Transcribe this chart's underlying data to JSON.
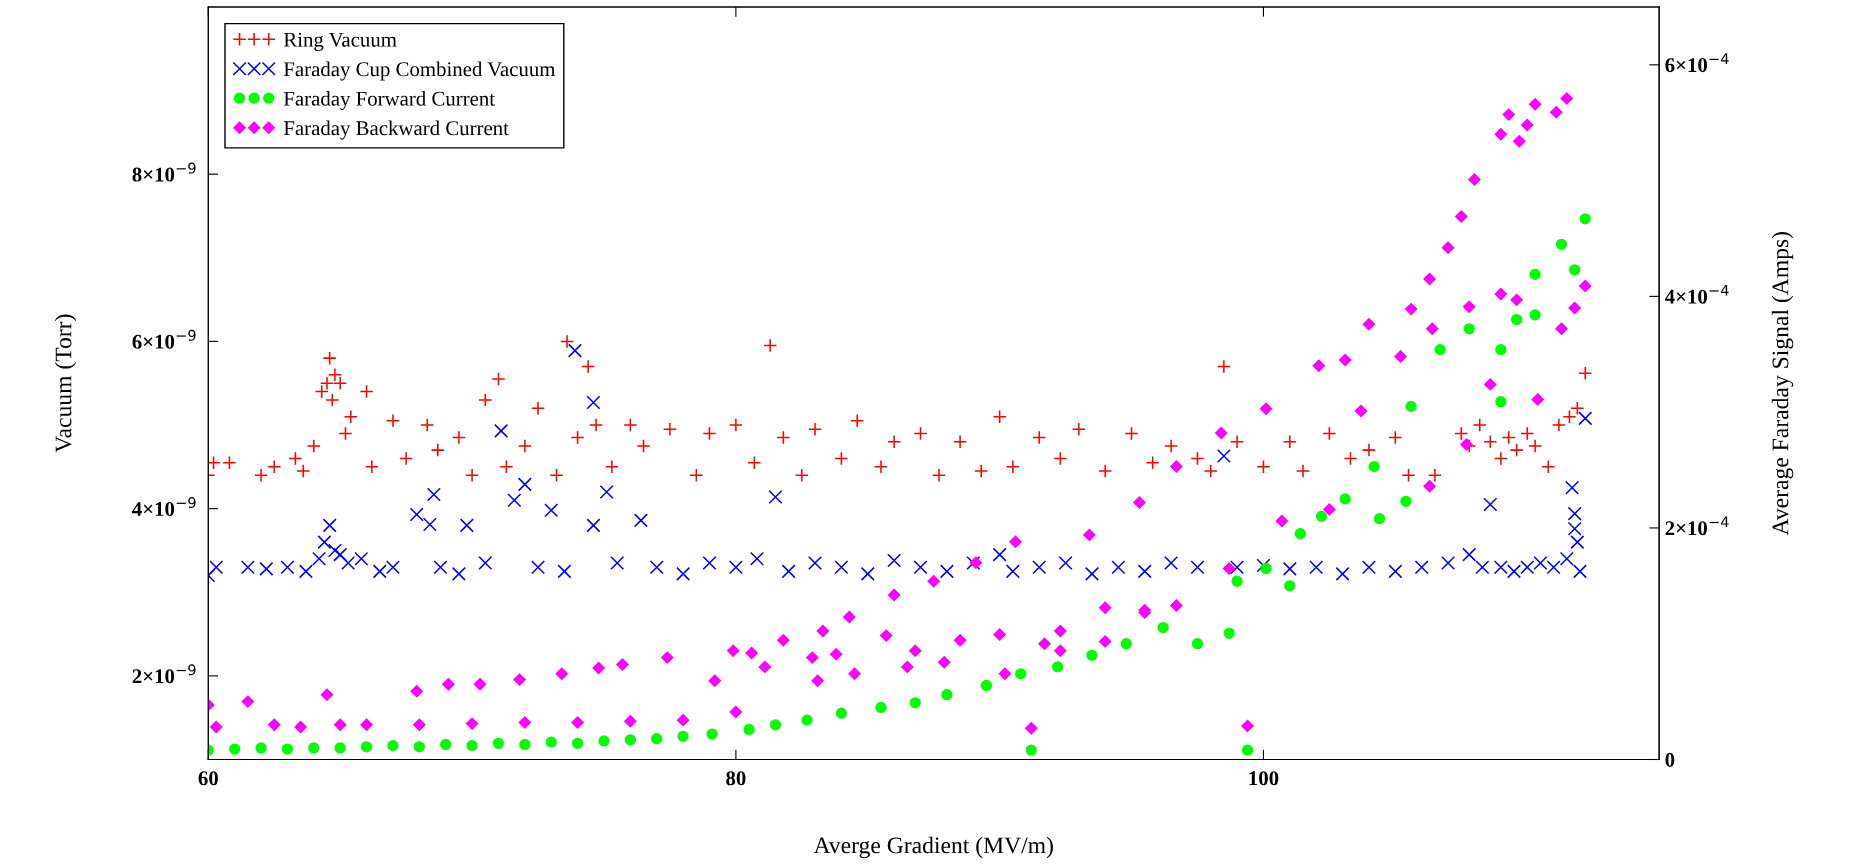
{
  "chart_data": {
    "type": "scatter",
    "xlabel": "Averge Gradient (MV/m)",
    "ylabel": "Vacuum (Torr)",
    "y2label": "Average Faraday Signal (Amps)",
    "xlim": [
      60,
      115
    ],
    "xticks": [
      60,
      80,
      100
    ],
    "ylim": [
      1e-09,
      1e-08
    ],
    "yticks": [
      {
        "value": 2e-09,
        "label": "2×10$^{−9}$"
      },
      {
        "value": 4e-09,
        "label": "4×10$^{−9}$"
      },
      {
        "value": 6e-09,
        "label": "6×10$^{−9}$"
      },
      {
        "value": 8e-09,
        "label": "8×10$^{−9}$"
      }
    ],
    "y2lim": [
      0,
      0.00065
    ],
    "y2ticks": [
      0,
      {
        "value": 0.0002,
        "label": "2×10$^{−4}$"
      },
      {
        "value": 0.0004,
        "label": "4×10$^{−4}$"
      },
      {
        "value": 0.0006,
        "label": "6×10$^{−4}$"
      }
    ],
    "legend": "top left",
    "grid": false,
    "series": [
      {
        "name": "Ring Vacuum",
        "color": "#ff0000",
        "marker": "plus",
        "x": [
          60.0,
          60.2,
          60.8,
          62,
          62.5,
          63.3,
          63.6,
          64.0,
          64.3,
          64.5,
          64.6,
          64.7,
          64.8,
          65,
          65.2,
          65.4,
          66.0,
          66.2,
          67,
          67.5,
          68.3,
          68.7,
          69.5,
          70.0,
          70.5,
          71,
          71.3,
          72,
          72.5,
          73.2,
          73.6,
          74,
          74.4,
          74.7,
          75.3,
          76,
          76.5,
          77.5,
          78.5,
          79,
          80,
          80.7,
          81.3,
          81.8,
          82.5,
          83,
          84,
          84.6,
          85.5,
          86,
          87,
          87.7,
          88.5,
          89.3,
          90,
          90.5,
          91.5,
          92.3,
          93,
          94,
          95,
          95.8,
          96.5,
          97.5,
          98,
          98.5,
          99,
          100,
          101,
          101.5,
          102.5,
          103.3,
          104,
          105,
          105.5,
          106.5,
          107.5,
          107.8,
          108.2,
          108.6,
          109,
          109.3,
          109.6,
          110,
          110.3,
          110.8,
          111.2,
          111.6,
          111.9,
          112.2
        ],
        "values": [
          4.4e-09,
          4.55e-09,
          4.55e-09,
          4.4e-09,
          4.5e-09,
          4.6e-09,
          4.45e-09,
          4.75e-09,
          5.4e-09,
          5.5e-09,
          5.8e-09,
          5.3e-09,
          5.6e-09,
          5.5e-09,
          4.9e-09,
          5.1e-09,
          5.4e-09,
          4.5e-09,
          5.05e-09,
          4.6e-09,
          5e-09,
          4.7e-09,
          4.85e-09,
          4.4e-09,
          5.3e-09,
          5.55e-09,
          4.5e-09,
          4.75e-09,
          5.2e-09,
          4.4e-09,
          6e-09,
          4.85e-09,
          5.7e-09,
          5e-09,
          4.5e-09,
          5e-09,
          4.75e-09,
          4.95e-09,
          4.4e-09,
          4.9e-09,
          5e-09,
          4.55e-09,
          5.95e-09,
          4.85e-09,
          4.4e-09,
          4.95e-09,
          4.6e-09,
          5.05e-09,
          4.5e-09,
          4.8e-09,
          4.9e-09,
          4.4e-09,
          4.8e-09,
          4.45e-09,
          5.1e-09,
          4.5e-09,
          4.85e-09,
          4.6e-09,
          4.95e-09,
          4.45e-09,
          4.9e-09,
          4.55e-09,
          4.75e-09,
          4.6e-09,
          4.45e-09,
          5.7e-09,
          4.8e-09,
          4.5e-09,
          4.8e-09,
          4.45e-09,
          4.9e-09,
          4.6e-09,
          4.7e-09,
          4.85e-09,
          4.4e-09,
          4.4e-09,
          4.9e-09,
          4.75e-09,
          5e-09,
          4.8e-09,
          4.6e-09,
          4.85e-09,
          4.7e-09,
          4.9e-09,
          4.75e-09,
          4.5e-09,
          5e-09,
          5.1e-09,
          5.2e-09,
          5.62e-09
        ]
      },
      {
        "name": "Faraday Cup Combined Vacuum",
        "color": "#0000ff",
        "marker": "cross",
        "x": [
          60,
          60.3,
          61.5,
          62.2,
          63,
          63.7,
          64.2,
          64.4,
          64.6,
          64.8,
          65.0,
          65.3,
          65.8,
          66.5,
          67,
          67.9,
          68.4,
          68.55,
          68.8,
          69.5,
          69.8,
          70.5,
          71.1,
          71.6,
          72.0,
          72.5,
          73.0,
          73.5,
          73.9,
          74.6,
          74.6,
          75.1,
          75.5,
          76.4,
          77,
          78,
          79,
          80,
          80.8,
          81.5,
          82,
          83,
          84,
          85,
          86,
          87,
          88,
          89,
          90,
          90.5,
          91.5,
          92.5,
          93.5,
          94.5,
          95.5,
          96.5,
          97.5,
          98.5,
          99,
          100,
          101,
          102,
          103,
          104,
          105,
          106,
          107,
          107.8,
          108.3,
          108.6,
          109,
          109.5,
          110,
          110.5,
          111,
          111.5,
          111.7,
          111.8,
          111.8,
          111.9,
          112.0,
          112.2
        ],
        "values": [
          3.2e-09,
          3.3e-09,
          3.3e-09,
          3.28e-09,
          3.3e-09,
          3.25e-09,
          3.4e-09,
          3.6e-09,
          3.8e-09,
          3.5e-09,
          3.45e-09,
          3.35e-09,
          3.4e-09,
          3.25e-09,
          3.3e-09,
          3.93e-09,
          3.81e-09,
          4.17e-09,
          3.3e-09,
          3.22e-09,
          3.8e-09,
          3.35e-09,
          4.93e-09,
          4.1e-09,
          4.29e-09,
          3.3e-09,
          3.98e-09,
          3.25e-09,
          5.89e-09,
          5.27e-09,
          3.8e-09,
          4.2e-09,
          3.35e-09,
          3.86e-09,
          3.3e-09,
          3.22e-09,
          3.35e-09,
          3.3e-09,
          3.4e-09,
          4.14e-09,
          3.25e-09,
          3.35e-09,
          3.3e-09,
          3.22e-09,
          3.38e-09,
          3.3e-09,
          3.25e-09,
          3.35e-09,
          3.45e-09,
          3.25e-09,
          3.3e-09,
          3.35e-09,
          3.22e-09,
          3.3e-09,
          3.25e-09,
          3.35e-09,
          3.3e-09,
          4.63e-09,
          3.3e-09,
          3.32e-09,
          3.28e-09,
          3.3e-09,
          3.22e-09,
          3.3e-09,
          3.25e-09,
          3.3e-09,
          3.35e-09,
          3.45e-09,
          3.3e-09,
          4.05e-09,
          3.3e-09,
          3.25e-09,
          3.3e-09,
          3.35e-09,
          3.3e-09,
          3.4e-09,
          4.25e-09,
          3.94e-09,
          3.76e-09,
          3.6e-09,
          3.25e-09,
          5.08e-09
        ]
      },
      {
        "name": "Faraday Forward Current",
        "color": "#00ff00",
        "marker": "circle",
        "axis": "y2",
        "x": [
          60,
          61,
          62,
          63,
          64,
          65,
          66,
          67,
          68,
          69,
          70,
          71,
          72,
          73,
          74,
          75,
          76,
          77,
          78,
          79.1,
          80.5,
          81.5,
          82.7,
          84,
          85.5,
          86.8,
          88,
          89.5,
          90.8,
          91.2,
          92.2,
          93.5,
          94.8,
          96.2,
          97.5,
          98.7,
          99.0,
          99.4,
          100.1,
          101.0,
          101.4,
          102.2,
          103.1,
          104.2,
          104.4,
          105.4,
          105.6,
          106.7,
          107.8,
          109.0,
          109.0,
          109.6,
          110.3,
          110.3,
          111.3,
          111.8,
          112.2
        ],
        "values": [
          8e-06,
          9e-06,
          1e-05,
          9e-06,
          1e-05,
          1e-05,
          1.1e-05,
          1.2e-05,
          1.1e-05,
          1.3e-05,
          1.2e-05,
          1.4e-05,
          1.3e-05,
          1.5e-05,
          1.4e-05,
          1.6e-05,
          1.7e-05,
          1.8e-05,
          2e-05,
          2.2e-05,
          2.6e-05,
          3e-05,
          3.4e-05,
          4e-05,
          4.5e-05,
          4.9e-05,
          5.6e-05,
          6.4e-05,
          7.4e-05,
          8e-06,
          8e-05,
          9e-05,
          0.0001,
          0.000114,
          0.0001,
          0.000109,
          0.000154,
          8e-06,
          0.000165,
          0.00015,
          0.000195,
          0.00021,
          0.000225,
          0.000253,
          0.000208,
          0.000223,
          0.000305,
          0.000354,
          0.000372,
          0.000354,
          0.000309,
          0.00038,
          0.000419,
          0.000384,
          0.000445,
          0.000423,
          0.000467
        ]
      },
      {
        "name": "Faraday Backward Current",
        "color": "#ff00ff",
        "marker": "diamond",
        "axis": "y2",
        "x": [
          60,
          60.3,
          61.5,
          62.5,
          63.5,
          64.5,
          65,
          66,
          67.9,
          68,
          69.1,
          70,
          70.3,
          71.8,
          72,
          73.4,
          74,
          74.8,
          75.7,
          76,
          77.4,
          78,
          79.2,
          79.9,
          80.0,
          80.6,
          81.1,
          81.8,
          82.9,
          83.1,
          83.3,
          83.8,
          84.3,
          84.5,
          85.7,
          86.0,
          86.5,
          86.8,
          87.5,
          87.9,
          88.5,
          89.1,
          90.0,
          90.2,
          90.6,
          91.2,
          91.7,
          92.3,
          92.3,
          93.4,
          94.0,
          94.0,
          95.3,
          95.5,
          95.5,
          96.7,
          96.7,
          98.4,
          98.7,
          99.4,
          100.1,
          100.7,
          102.1,
          102.5,
          103.1,
          103.7,
          104.0,
          105.2,
          105.6,
          106.3,
          106.3,
          106.4,
          107.0,
          107.5,
          107.7,
          107.8,
          108.0,
          108.6,
          109.0,
          109.0,
          109.3,
          109.6,
          109.7,
          110.0,
          110.3,
          110.4,
          111.1,
          111.3,
          111.5,
          111.8,
          112.2
        ],
        "values": [
          4.7e-05,
          2.8e-05,
          5e-05,
          3e-05,
          2.8e-05,
          5.6e-05,
          3e-05,
          3e-05,
          5.9e-05,
          3e-05,
          6.5e-05,
          3.1e-05,
          6.5e-05,
          6.9e-05,
          3.2e-05,
          7.4e-05,
          3.2e-05,
          7.9e-05,
          8.2e-05,
          3.3e-05,
          8.8e-05,
          3.4e-05,
          6.8e-05,
          9.4e-05,
          4.1e-05,
          9.2e-05,
          8e-05,
          0.000103,
          8.8e-05,
          6.8e-05,
          0.000111,
          9.1e-05,
          0.000123,
          7.4e-05,
          0.000107,
          0.000142,
          8e-05,
          9.4e-05,
          0.000154,
          8.4e-05,
          0.000103,
          0.00017,
          0.000108,
          7.4e-05,
          0.000188,
          2.7e-05,
          0.0001,
          0.000111,
          9.4e-05,
          0.000194,
          0.000131,
          0.000102,
          0.000222,
          0.000127,
          0.000129,
          0.000133,
          0.000253,
          0.000282,
          0.000165,
          2.9e-05,
          0.000303,
          0.000206,
          0.00034,
          0.000216,
          0.000345,
          0.000301,
          0.000376,
          0.000348,
          0.000389,
          0.000415,
          0.000236,
          0.000372,
          0.000442,
          0.000469,
          0.000272,
          0.000391,
          0.000501,
          0.000324,
          0.00054,
          0.000402,
          0.000557,
          0.000397,
          0.000534,
          0.000548,
          0.000566,
          0.000311,
          0.000559,
          0.000372,
          0.000571,
          0.00039,
          0.000409
        ]
      }
    ]
  }
}
